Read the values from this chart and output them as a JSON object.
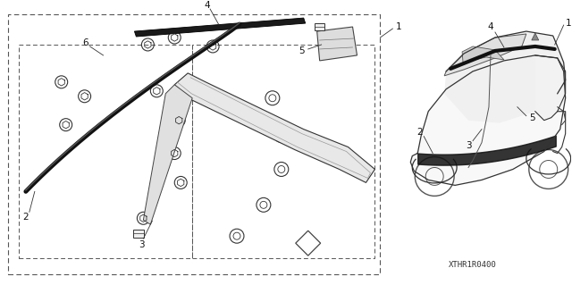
{
  "bg_color": "#ffffff",
  "diagram_code": "XTHR1R0400",
  "fig_width": 6.4,
  "fig_height": 3.19,
  "dpi": 100,
  "line_color": "#333333",
  "dashed_color": "#666666",
  "label_fontsize": 7.5
}
